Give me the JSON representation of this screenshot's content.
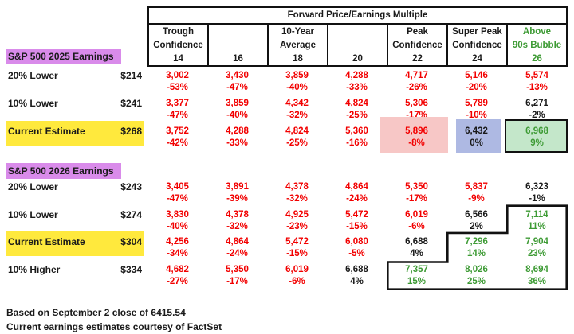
{
  "colors": {
    "red": "#f20000",
    "green": "#3e9b35",
    "black": "#1a1a1a",
    "pink_bg": "#f7c7c6",
    "blue_bg": "#aeb9e3",
    "green_bg": "#c4e7ca",
    "yellow_hl": "#ffe93d",
    "purple_hl": "#d98bea",
    "border": "#111111"
  },
  "chart_data": {
    "type": "table",
    "title": "Forward Price/Earnings Multiple",
    "columns": [
      {
        "line1": "Trough",
        "line2": "Confidence",
        "multiple": "14",
        "color": "black"
      },
      {
        "line1": "",
        "line2": "",
        "multiple": "16",
        "color": "black"
      },
      {
        "line1": "10-Year",
        "line2": "Average",
        "multiple": "18",
        "color": "black"
      },
      {
        "line1": "",
        "line2": "",
        "multiple": "20",
        "color": "black"
      },
      {
        "line1": "Peak",
        "line2": "Confidence",
        "multiple": "22",
        "color": "black"
      },
      {
        "line1": "Super Peak",
        "line2": "Confidence",
        "multiple": "24",
        "color": "black"
      },
      {
        "line1": "Above",
        "line2": "90s Bubble",
        "multiple": "26",
        "color": "green"
      }
    ],
    "sections": [
      {
        "label": "S&P 500 2025 Earnings",
        "rows": [
          {
            "label": "20% Lower",
            "eps": "$214",
            "label_bg": null,
            "values": [
              "3,002",
              "3,430",
              "3,859",
              "4,288",
              "4,717",
              "5,146",
              "5,574"
            ],
            "value_colors": [
              "red",
              "red",
              "red",
              "red",
              "red",
              "red",
              "red"
            ],
            "pcts": [
              "-53%",
              "-47%",
              "-40%",
              "-33%",
              "-26%",
              "-20%",
              "-13%"
            ],
            "pct_colors": [
              "red",
              "red",
              "red",
              "red",
              "red",
              "red",
              "red"
            ]
          },
          {
            "label": "10% Lower",
            "eps": "$241",
            "label_bg": null,
            "values": [
              "3,377",
              "3,859",
              "4,342",
              "4,824",
              "5,306",
              "5,789",
              "6,271"
            ],
            "value_colors": [
              "red",
              "red",
              "red",
              "red",
              "red",
              "red",
              "black"
            ],
            "pcts": [
              "-47%",
              "-40%",
              "-32%",
              "-25%",
              "-17%",
              "-10%",
              "-2%"
            ],
            "pct_colors": [
              "red",
              "red",
              "red",
              "red",
              "red",
              "red",
              "black"
            ]
          },
          {
            "label": "Current Estimate",
            "eps": "$268",
            "label_bg": "yellow",
            "values": [
              "3,752",
              "4,288",
              "4,824",
              "5,360",
              "5,896",
              "6,432",
              "6,968"
            ],
            "value_colors": [
              "red",
              "red",
              "red",
              "red",
              "red",
              "black",
              "green"
            ],
            "pcts": [
              "-42%",
              "-33%",
              "-25%",
              "-16%",
              "-8%",
              "0%",
              "9%"
            ],
            "pct_colors": [
              "red",
              "red",
              "red",
              "red",
              "red",
              "black",
              "green"
            ],
            "cell_highlights": [
              {
                "col": 4,
                "type": "pink"
              },
              {
                "col": 5,
                "type": "blue"
              },
              {
                "col": 6,
                "type": "green_box"
              }
            ]
          }
        ]
      },
      {
        "label": "S&P 500 2026 Earnings",
        "rows": [
          {
            "label": "20% Lower",
            "eps": "$243",
            "label_bg": null,
            "values": [
              "3,405",
              "3,891",
              "4,378",
              "4,864",
              "5,350",
              "5,837",
              "6,323"
            ],
            "value_colors": [
              "red",
              "red",
              "red",
              "red",
              "red",
              "red",
              "black"
            ],
            "pcts": [
              "-47%",
              "-39%",
              "-32%",
              "-24%",
              "-17%",
              "-9%",
              "-1%"
            ],
            "pct_colors": [
              "red",
              "red",
              "red",
              "red",
              "red",
              "red",
              "black"
            ]
          },
          {
            "label": "10% Lower",
            "eps": "$274",
            "label_bg": null,
            "values": [
              "3,830",
              "4,378",
              "4,925",
              "5,472",
              "6,019",
              "6,566",
              "7,114"
            ],
            "value_colors": [
              "red",
              "red",
              "red",
              "red",
              "red",
              "black",
              "green"
            ],
            "pcts": [
              "-40%",
              "-32%",
              "-23%",
              "-15%",
              "-6%",
              "2%",
              "11%"
            ],
            "pct_colors": [
              "red",
              "red",
              "red",
              "red",
              "red",
              "black",
              "green"
            ]
          },
          {
            "label": "Current Estimate",
            "eps": "$304",
            "label_bg": "yellow",
            "values": [
              "4,256",
              "4,864",
              "5,472",
              "6,080",
              "6,688",
              "7,296",
              "7,904"
            ],
            "value_colors": [
              "red",
              "red",
              "red",
              "red",
              "black",
              "green",
              "green"
            ],
            "pcts": [
              "-34%",
              "-24%",
              "-15%",
              "-5%",
              "4%",
              "14%",
              "23%"
            ],
            "pct_colors": [
              "red",
              "red",
              "red",
              "red",
              "black",
              "green",
              "green"
            ]
          },
          {
            "label": "10% Higher",
            "eps": "$334",
            "label_bg": null,
            "values": [
              "4,682",
              "5,350",
              "6,019",
              "6,688",
              "7,357",
              "8,026",
              "8,694"
            ],
            "value_colors": [
              "red",
              "red",
              "red",
              "black",
              "green",
              "green",
              "green"
            ],
            "pcts": [
              "-27%",
              "-17%",
              "-6%",
              "4%",
              "15%",
              "25%",
              "36%"
            ],
            "pct_colors": [
              "red",
              "red",
              "red",
              "black",
              "green",
              "green",
              "green"
            ]
          }
        ]
      }
    ],
    "annotations": {
      "staircase_outline": "thick black stair-step border enclosing green upside cells in bottom-right (cols 22-26, rows 10% Lower 2026 through 10% Higher 2026)"
    },
    "notes": [
      "Based on September 2 close of 6415.54",
      "Current earnings estimates courtesy of FactSet"
    ]
  }
}
